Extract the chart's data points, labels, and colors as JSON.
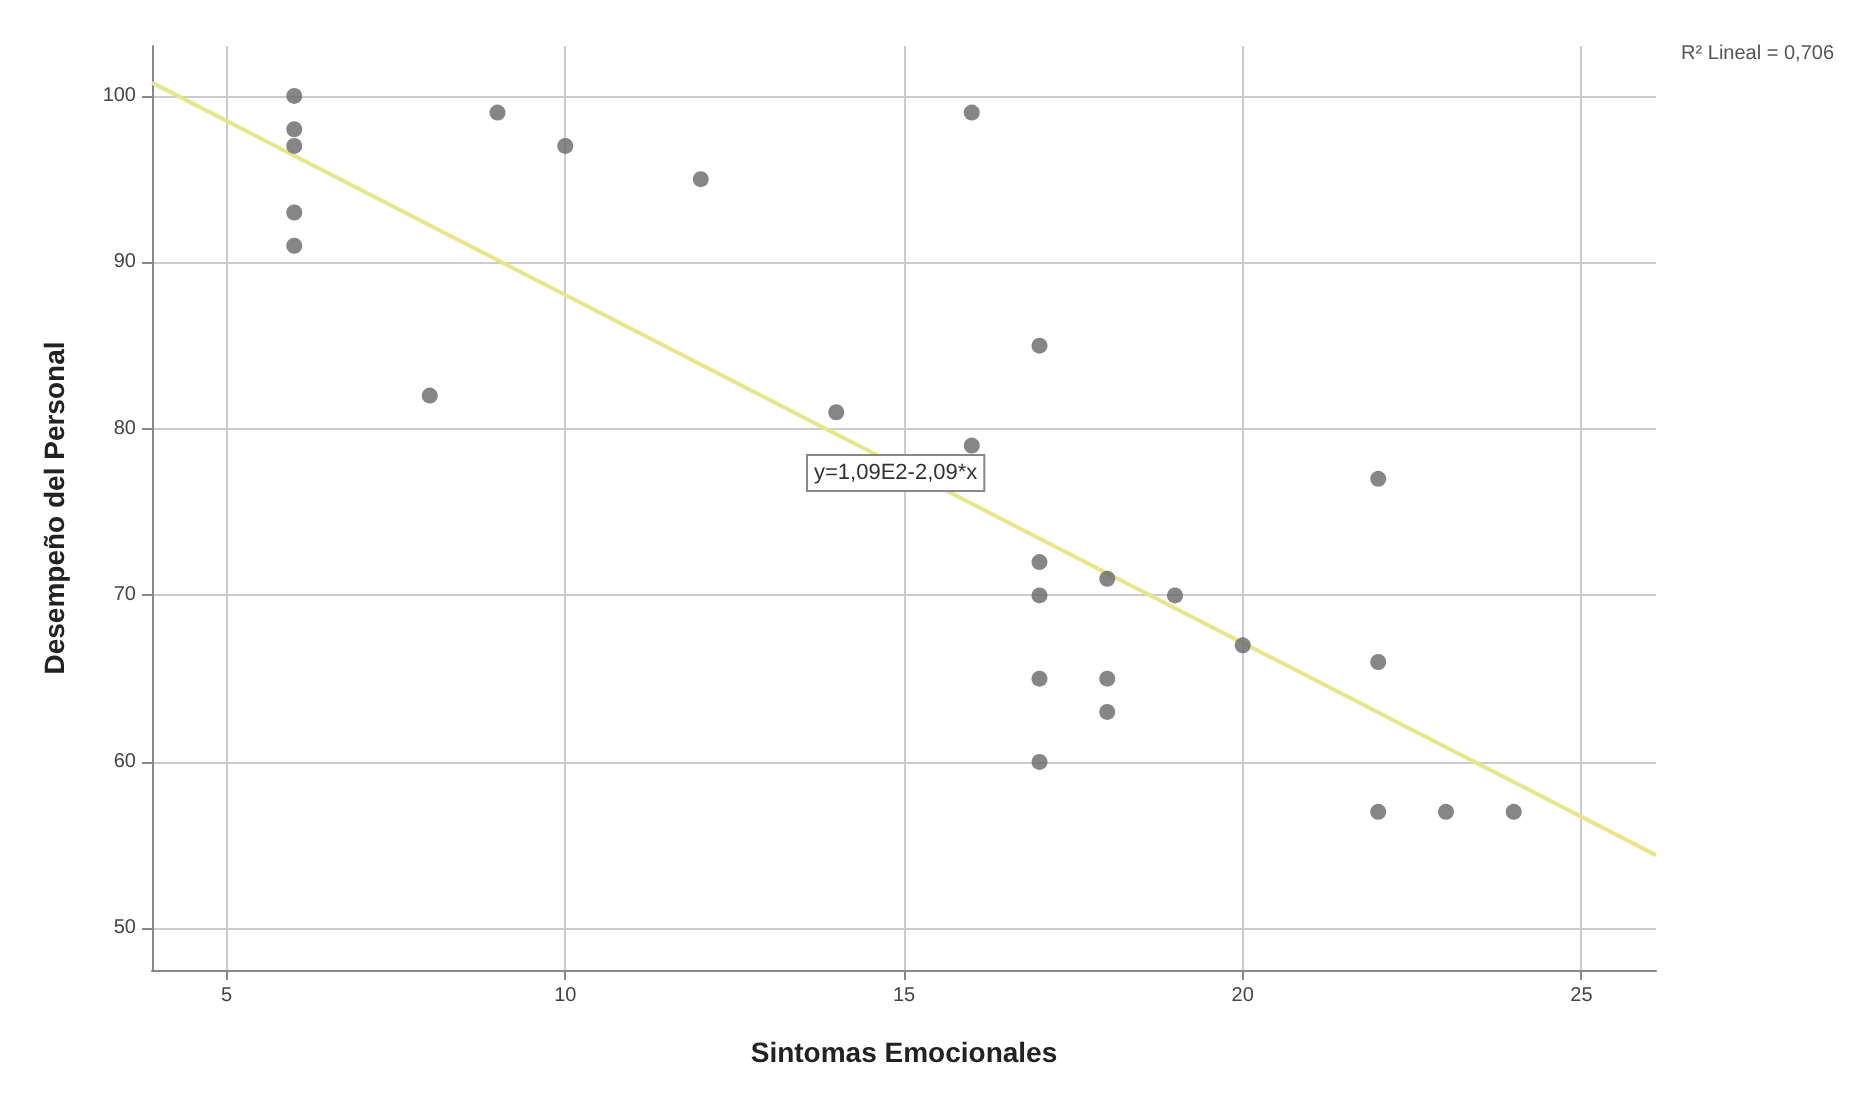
{
  "chart_data": {
    "type": "scatter",
    "xlabel": "Sintomas Emocionales",
    "ylabel": "Desempeño del Personal",
    "xlim": [
      3.9,
      26.1
    ],
    "ylim": [
      47.5,
      103
    ],
    "xticks": [
      5,
      10,
      15,
      20,
      25
    ],
    "yticks": [
      50,
      60,
      70,
      80,
      90,
      100
    ],
    "grid": true,
    "series": [
      {
        "marker": "circle",
        "color": "#686868",
        "x": [
          6,
          6,
          6,
          6,
          6,
          8,
          9,
          10,
          12,
          14,
          16,
          16,
          17,
          17,
          17,
          17,
          17,
          18,
          18,
          18,
          19,
          20,
          22,
          22,
          22,
          23,
          24
        ],
        "values": [
          100,
          98,
          97,
          93,
          91,
          82,
          99,
          97,
          95,
          81,
          99,
          79,
          85,
          72,
          70,
          65,
          60,
          71,
          65,
          63,
          70,
          67,
          77,
          66,
          57,
          57,
          57
        ]
      },
      {
        "type": "line",
        "marker": "none",
        "color": "#e6e68c",
        "x": [
          3.9,
          26.1
        ],
        "values": [
          100.8,
          54.4
        ]
      }
    ],
    "annotations": [
      "y=1,09E2-2,09*x",
      "R² Lineal = 0,706"
    ]
  }
}
